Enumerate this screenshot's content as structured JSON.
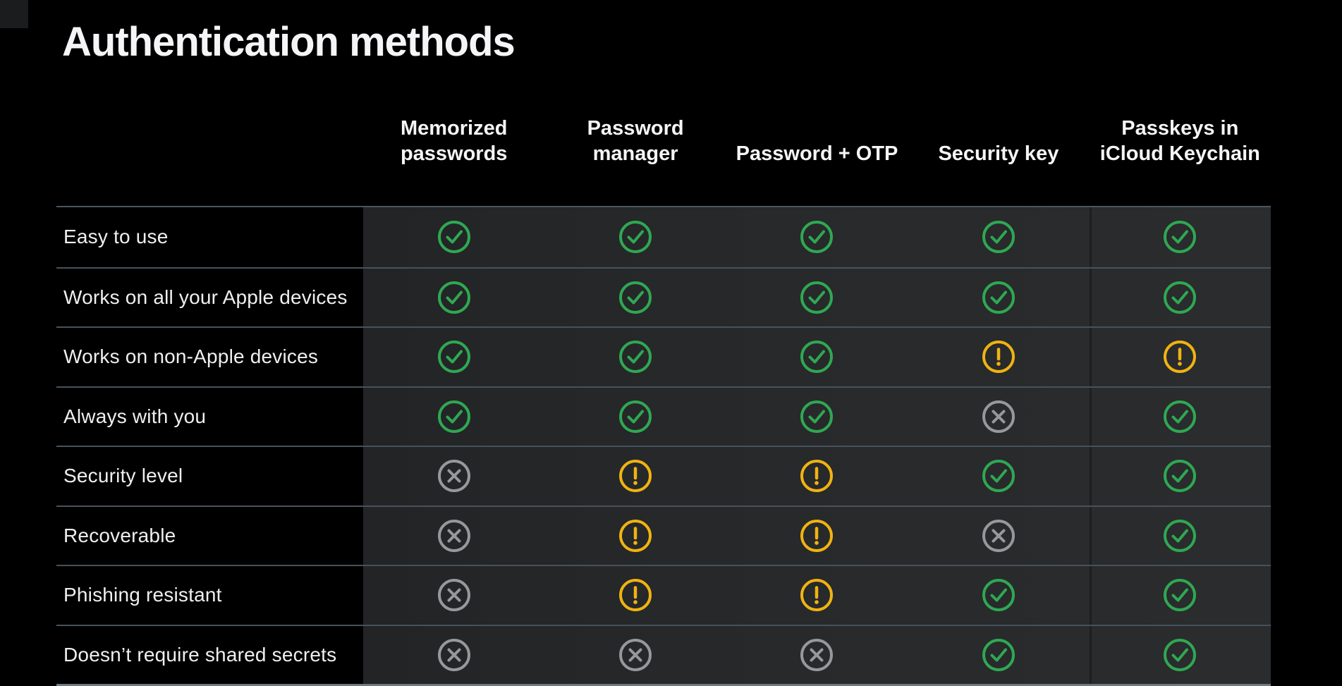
{
  "page": {
    "title": "Authentication methods",
    "background": "#000000"
  },
  "table": {
    "columns": [
      {
        "label": "Memorized passwords",
        "lines": [
          "Memorized",
          "passwords"
        ]
      },
      {
        "label": "Password manager",
        "lines": [
          "Password manager"
        ]
      },
      {
        "label": "Password + OTP",
        "lines": [
          "Password + OTP"
        ]
      },
      {
        "label": "Security key",
        "lines": [
          "Security key"
        ]
      },
      {
        "label": "Passkeys in iCloud Keychain",
        "lines": [
          "Passkeys in",
          "iCloud Keychain"
        ]
      }
    ],
    "rows": [
      {
        "label": "Easy to use",
        "cells": [
          "check",
          "check",
          "check",
          "check",
          "check"
        ]
      },
      {
        "label": "Works on all your Apple devices",
        "cells": [
          "check",
          "check",
          "check",
          "check",
          "check"
        ]
      },
      {
        "label": "Works on non-Apple devices",
        "cells": [
          "check",
          "check",
          "check",
          "warning",
          "warning"
        ]
      },
      {
        "label": "Always with you",
        "cells": [
          "check",
          "check",
          "check",
          "cross",
          "check"
        ]
      },
      {
        "label": "Security level",
        "cells": [
          "cross",
          "warning",
          "warning",
          "check",
          "check"
        ]
      },
      {
        "label": "Recoverable",
        "cells": [
          "cross",
          "warning",
          "warning",
          "cross",
          "check"
        ]
      },
      {
        "label": "Phishing resistant",
        "cells": [
          "cross",
          "warning",
          "warning",
          "check",
          "check"
        ]
      },
      {
        "label": "Doesn’t require shared secrets",
        "cells": [
          "cross",
          "cross",
          "cross",
          "check",
          "check"
        ]
      }
    ],
    "icons": {
      "check": {
        "name": "check-circle-icon",
        "color": "#2fa852"
      },
      "warning": {
        "name": "warning-circle-icon",
        "color": "#f0b310"
      },
      "cross": {
        "name": "cross-circle-icon",
        "color": "#97989b"
      }
    },
    "colors": {
      "divider": "#46525d",
      "bottom_border": "#6d7983",
      "data_background": "#27292b",
      "text": "#f5f5f7"
    }
  }
}
